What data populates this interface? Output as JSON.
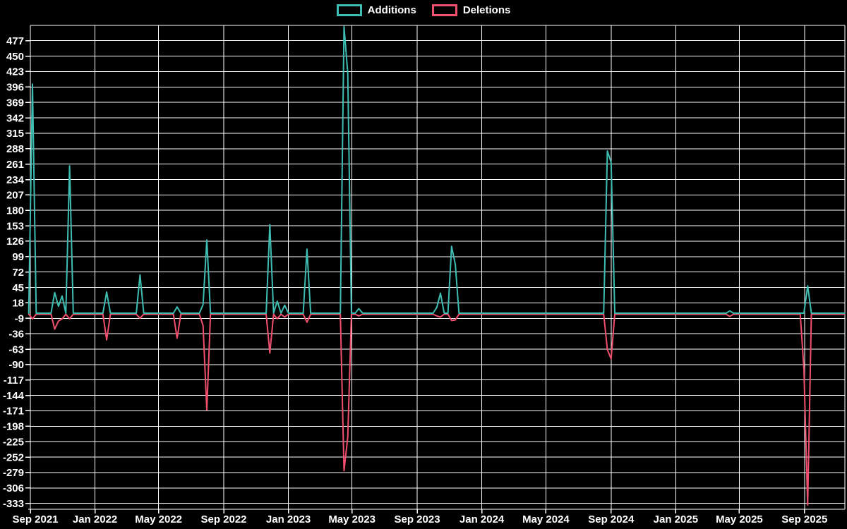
{
  "page": {
    "background_color": "#000000",
    "text_color": "#ffffff",
    "grid_color": "#ffffff"
  },
  "legend": {
    "position": "top-center",
    "items": [
      {
        "label": "Additions",
        "color": "#3ebdb2"
      },
      {
        "label": "Deletions",
        "color": "#f0506e"
      }
    ]
  },
  "chart_data": {
    "type": "line",
    "title": "",
    "grid": true,
    "legend_position": "top-center",
    "cadence": "weekly",
    "baseline_value": 0,
    "x_axis": {
      "range": [
        "2021-08-29",
        "2025-11-16"
      ],
      "tick_labels": [
        "Sep 2021",
        "Jan 2022",
        "May 2022",
        "Sep 2022",
        "Jan 2023",
        "May 2023",
        "Sep 2023",
        "Jan 2024",
        "May 2024",
        "Sep 2024",
        "Jan 2025",
        "May 2025",
        "Sep 2025"
      ],
      "tick_dates": [
        "2021-09-01",
        "2022-01-01",
        "2022-05-01",
        "2022-09-01",
        "2023-01-01",
        "2023-05-01",
        "2023-09-01",
        "2024-01-01",
        "2024-05-01",
        "2024-09-01",
        "2025-01-01",
        "2025-05-01",
        "2025-09-01"
      ]
    },
    "y_axis": {
      "tick_values": [
        477,
        450,
        423,
        396,
        369,
        342,
        315,
        288,
        261,
        234,
        207,
        180,
        153,
        126,
        99,
        72,
        45,
        18,
        -9,
        -36,
        -63,
        -90,
        -117,
        -144,
        -171,
        -198,
        -225,
        -252,
        -279,
        -306,
        -333
      ],
      "tick_step": 27,
      "grid_max": 504,
      "ylim": [
        -343,
        504
      ]
    },
    "series": [
      {
        "name": "Additions",
        "color": "#3ebdb2"
      },
      {
        "name": "Deletions",
        "color": "#f0506e"
      }
    ],
    "note": "Weekly data; every week not listed below has additions 0 and deletions 0.",
    "points": [
      {
        "week": "2021-09-05",
        "additions": 401,
        "deletions": -8
      },
      {
        "week": "2021-10-17",
        "additions": 36,
        "deletions": -26
      },
      {
        "week": "2021-10-24",
        "additions": 12,
        "deletions": -12
      },
      {
        "week": "2021-10-31",
        "additions": 30,
        "deletions": -8
      },
      {
        "week": "2021-11-14",
        "additions": 258,
        "deletions": -8
      },
      {
        "week": "2022-01-23",
        "additions": 37,
        "deletions": -45
      },
      {
        "week": "2022-03-27",
        "additions": 67,
        "deletions": -7
      },
      {
        "week": "2022-06-05",
        "additions": 11,
        "deletions": -42
      },
      {
        "week": "2022-07-24",
        "additions": 15,
        "deletions": -20
      },
      {
        "week": "2022-07-31",
        "additions": 128,
        "deletions": -168
      },
      {
        "week": "2022-11-27",
        "additions": 155,
        "deletions": -68
      },
      {
        "week": "2022-12-11",
        "additions": 21,
        "deletions": -8
      },
      {
        "week": "2022-12-25",
        "additions": 14,
        "deletions": -5
      },
      {
        "week": "2023-02-05",
        "additions": 112,
        "deletions": -14
      },
      {
        "week": "2023-04-16",
        "additions": 502,
        "deletions": -274
      },
      {
        "week": "2023-04-23",
        "additions": 420,
        "deletions": -215
      },
      {
        "week": "2023-05-14",
        "additions": 8,
        "deletions": -3
      },
      {
        "week": "2023-10-08",
        "additions": 10,
        "deletions": -3
      },
      {
        "week": "2023-10-15",
        "additions": 35,
        "deletions": -5
      },
      {
        "week": "2023-11-05",
        "additions": 117,
        "deletions": -11
      },
      {
        "week": "2023-11-12",
        "additions": 85,
        "deletions": -10
      },
      {
        "week": "2024-08-25",
        "additions": 284,
        "deletions": -62
      },
      {
        "week": "2024-09-01",
        "additions": 264,
        "deletions": -78
      },
      {
        "week": "2025-04-13",
        "additions": 4,
        "deletions": -4
      },
      {
        "week": "2025-08-31",
        "additions": 0,
        "deletions": -97
      },
      {
        "week": "2025-09-07",
        "additions": 48,
        "deletions": -334
      }
    ]
  }
}
